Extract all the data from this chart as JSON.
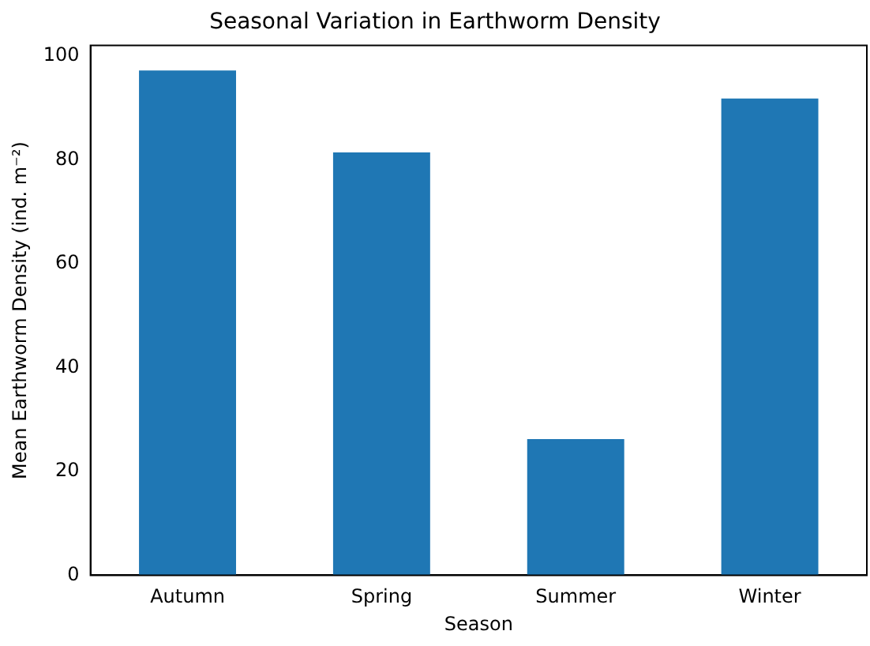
{
  "chart_data": {
    "type": "bar",
    "title": "Seasonal Variation in Earthworm Density",
    "xlabel": "Season",
    "ylabel": "Mean Earthworm Density (ind. m⁻²)",
    "categories": [
      "Autumn",
      "Spring",
      "Summer",
      "Winter"
    ],
    "values": [
      97.2,
      81.4,
      26.2,
      91.8
    ],
    "color": "#1f77b4",
    "ylim": [
      0,
      102
    ],
    "yticks": [
      0,
      20,
      40,
      60,
      80,
      100
    ],
    "grid": false,
    "legend": false
  }
}
